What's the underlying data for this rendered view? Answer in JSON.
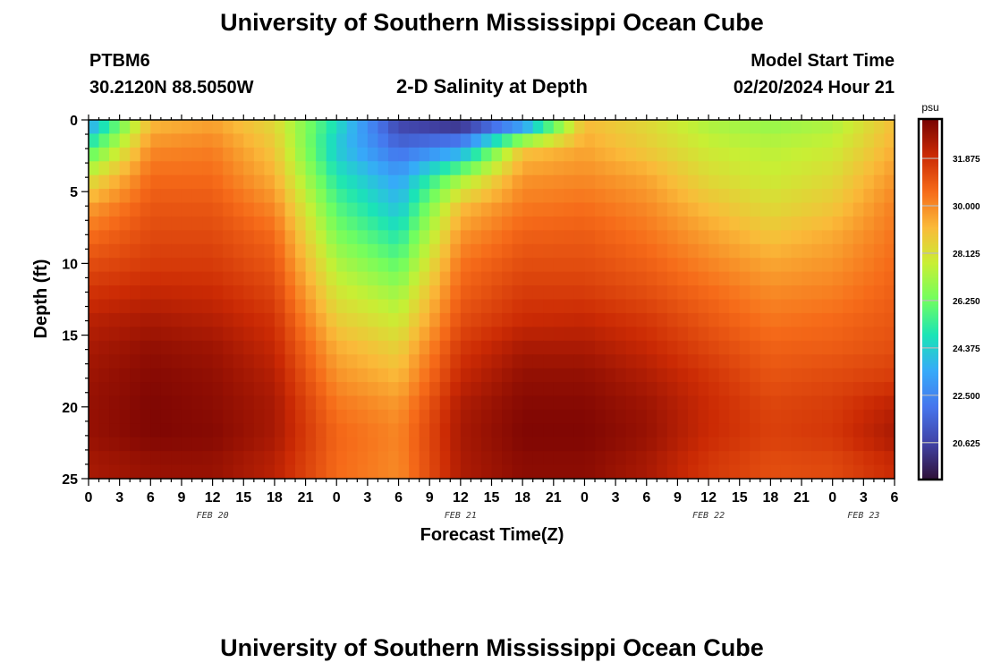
{
  "header": {
    "title": "University of Southern Mississippi Ocean Cube",
    "station_id": "PTBM6",
    "station_coords": "30.2120N  88.5050W",
    "plot_title": "2-D Salinity at Depth",
    "model_label": "Model Start Time",
    "model_time": "02/20/2024 Hour 21"
  },
  "footer": {
    "title": "University of Southern Mississippi Ocean Cube"
  },
  "chart_data": {
    "type": "heatmap",
    "title": "2-D Salinity at Depth",
    "xlabel": "Forecast Time(Z)",
    "ylabel": "Depth (ft)",
    "y_ticks": [
      "0",
      "5",
      "10",
      "15",
      "20",
      "25"
    ],
    "ylim": [
      0,
      25
    ],
    "y_inverted": true,
    "x_ticks": [
      "0",
      "3",
      "6",
      "9",
      "12",
      "15",
      "18",
      "21",
      "0",
      "3",
      "6",
      "9",
      "12",
      "15",
      "18",
      "21",
      "0",
      "3",
      "6",
      "9",
      "12",
      "15",
      "18",
      "21",
      "0",
      "3",
      "6"
    ],
    "date_labels": [
      {
        "label": "FEB 20",
        "tick_index": 4
      },
      {
        "label": "FEB 21",
        "tick_index": 12
      },
      {
        "label": "FEB 22",
        "tick_index": 20
      },
      {
        "label": "FEB 23",
        "tick_index": 25
      }
    ],
    "time_range_hours": [
      0,
      78
    ],
    "colorbar": {
      "unit": "psu",
      "range": [
        19.2,
        33.4
      ],
      "ticks": [
        "31.875",
        "30.000",
        "28.125",
        "26.250",
        "24.375",
        "22.500",
        "20.625"
      ],
      "tick_values": [
        31.875,
        30.0,
        28.125,
        26.25,
        24.375,
        22.5,
        20.625
      ],
      "palette": [
        "#30123b",
        "#4143a7",
        "#4675ed",
        "#36aaf9",
        "#1be4b6",
        "#72fe5e",
        "#c8ef34",
        "#faba39",
        "#f66b19",
        "#cb2a04",
        "#7a0403"
      ]
    },
    "depth_samples_ft": [
      0,
      2,
      4,
      6,
      8,
      10,
      12,
      14,
      16,
      18,
      20,
      22,
      24
    ],
    "time_samples_h": [
      0,
      6,
      12,
      18,
      24,
      30,
      36,
      42,
      48,
      54,
      60,
      66,
      72,
      78
    ],
    "values_psu": [
      [
        22.8,
        29.0,
        29.5,
        28.3,
        24.8,
        20.5,
        19.5,
        21.5,
        29.0,
        28.3,
        27.2,
        26.8,
        27.2,
        29.0
      ],
      [
        25.5,
        30.0,
        30.2,
        28.8,
        24.2,
        21.8,
        23.0,
        28.8,
        29.5,
        28.7,
        27.8,
        27.5,
        27.8,
        29.3
      ],
      [
        28.0,
        30.6,
        30.6,
        29.3,
        25.0,
        23.2,
        27.0,
        29.8,
        30.0,
        29.5,
        28.3,
        27.8,
        28.3,
        29.8
      ],
      [
        29.6,
        31.0,
        31.0,
        30.0,
        25.8,
        24.0,
        29.0,
        30.3,
        30.5,
        30.0,
        29.0,
        28.3,
        28.8,
        30.2
      ],
      [
        30.5,
        31.3,
        31.3,
        30.6,
        26.5,
        25.0,
        29.8,
        30.8,
        30.9,
        30.4,
        29.6,
        28.9,
        29.4,
        30.4
      ],
      [
        31.2,
        31.6,
        31.6,
        31.0,
        27.3,
        26.0,
        30.4,
        31.2,
        31.2,
        30.8,
        30.1,
        29.5,
        29.8,
        30.6
      ],
      [
        31.8,
        32.1,
        32.0,
        31.4,
        28.0,
        27.0,
        30.8,
        31.6,
        31.6,
        31.2,
        30.6,
        30.0,
        30.2,
        30.8
      ],
      [
        32.3,
        32.6,
        32.4,
        31.8,
        28.7,
        27.8,
        31.2,
        32.0,
        32.1,
        31.7,
        31.0,
        30.4,
        30.6,
        31.0
      ],
      [
        32.6,
        33.0,
        32.8,
        32.1,
        29.4,
        28.6,
        31.7,
        32.6,
        32.6,
        32.1,
        31.4,
        30.8,
        30.9,
        31.2
      ],
      [
        32.8,
        33.2,
        33.0,
        32.4,
        29.9,
        29.2,
        32.1,
        33.0,
        33.0,
        32.5,
        31.8,
        31.1,
        31.3,
        31.6
      ],
      [
        32.9,
        33.3,
        33.1,
        32.6,
        30.4,
        29.8,
        32.5,
        33.2,
        33.2,
        32.8,
        32.0,
        31.4,
        31.6,
        32.3
      ],
      [
        32.9,
        33.3,
        33.2,
        32.6,
        30.7,
        30.1,
        32.6,
        33.3,
        33.3,
        32.9,
        32.0,
        31.5,
        31.7,
        32.6
      ],
      [
        32.6,
        32.9,
        32.9,
        32.3,
        30.6,
        30.0,
        32.5,
        33.1,
        33.1,
        32.6,
        31.7,
        31.2,
        31.3,
        32.0
      ]
    ]
  }
}
